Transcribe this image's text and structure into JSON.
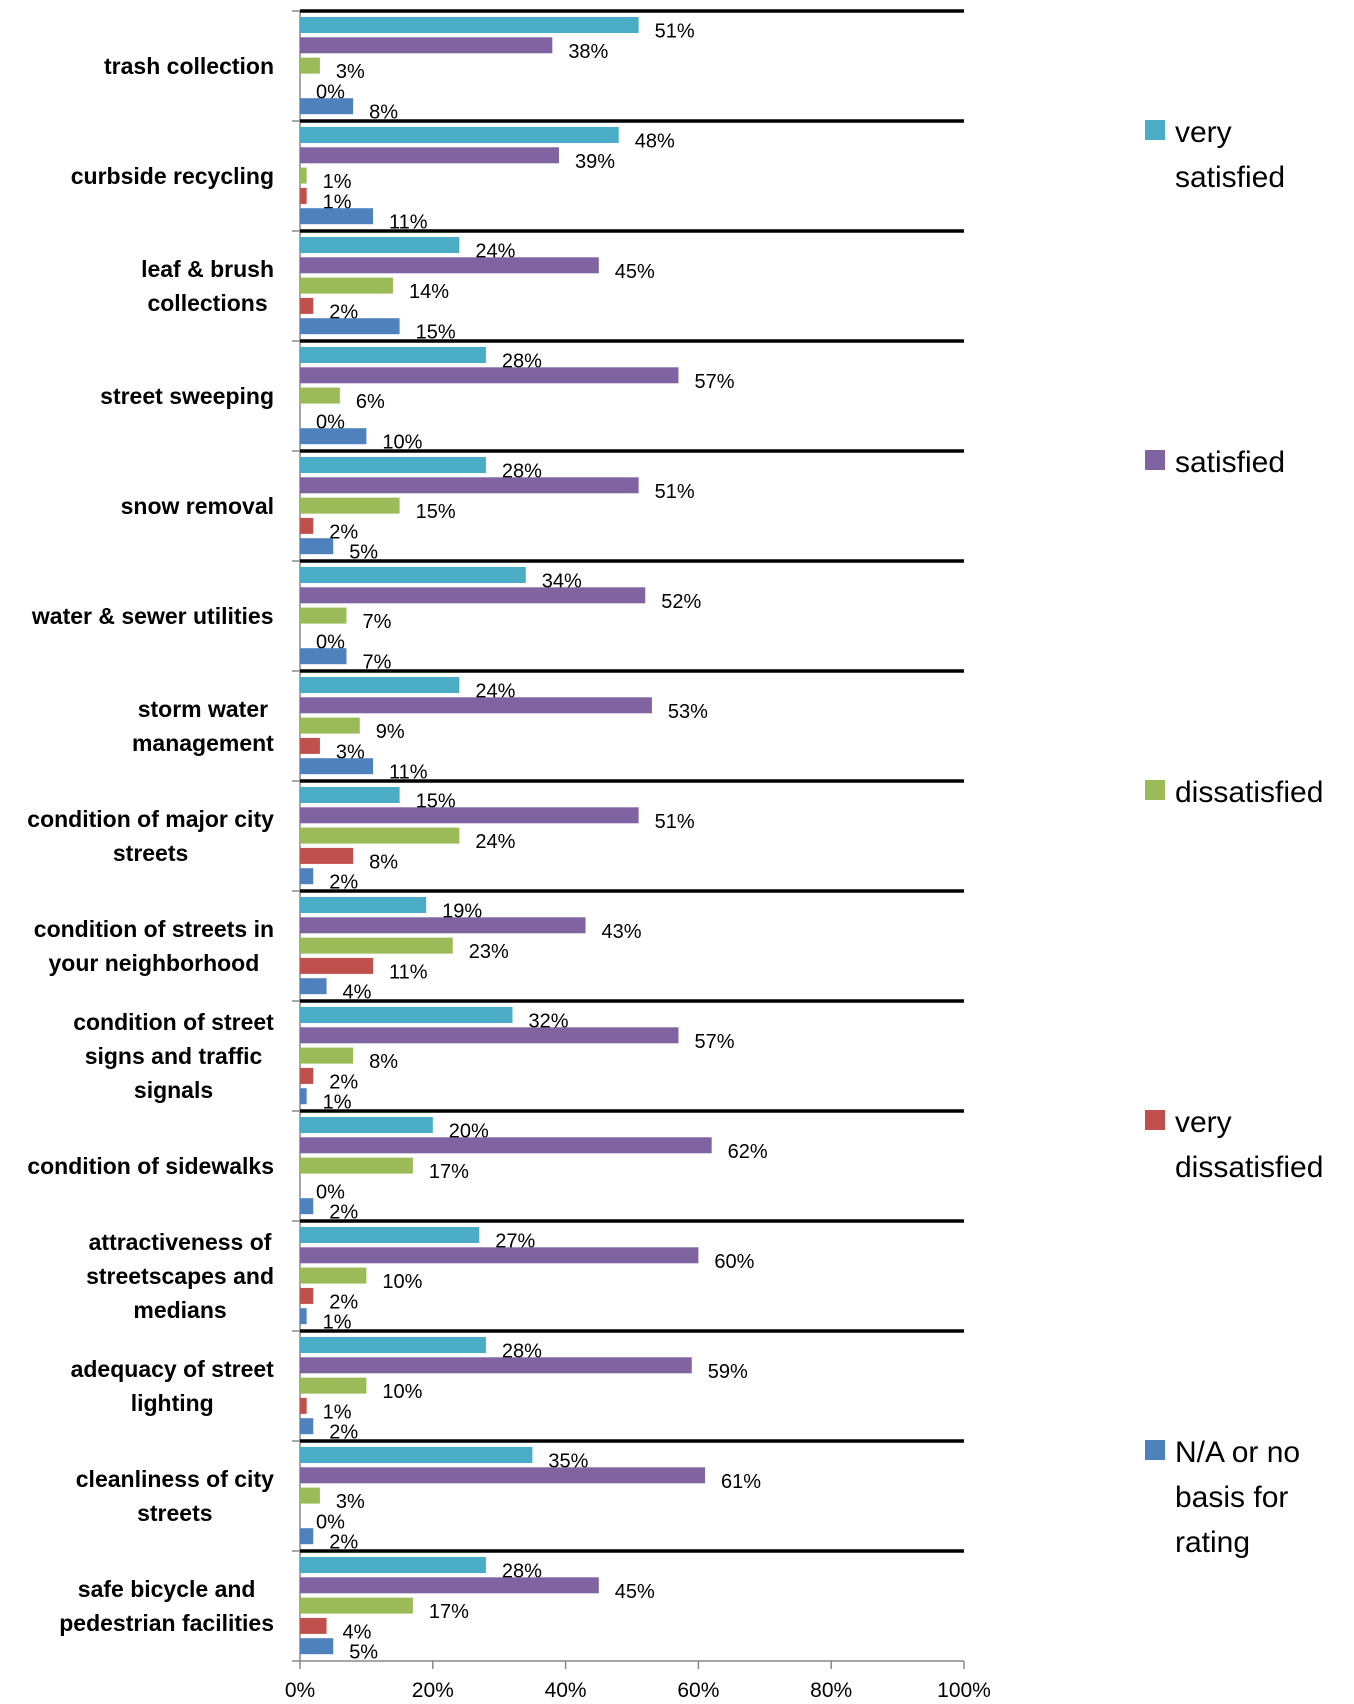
{
  "chart_data": {
    "type": "bar",
    "orientation": "horizontal",
    "categories": [
      "trash collection",
      "curbside recycling",
      "leaf & brush collections",
      "street sweeping",
      "snow removal",
      "water & sewer utilities",
      "storm water management",
      "condition of major city streets",
      "condition of streets in your neighborhood",
      "condition of street signs and traffic signals",
      "condition of sidewalks",
      "attractiveness of streetscapes and medians",
      "adequacy of street lighting",
      "cleanliness of city streets",
      "safe bicycle and pedestrian facilities"
    ],
    "category_lines": [
      [
        "trash collection"
      ],
      [
        "curbside recycling"
      ],
      [
        "leaf & brush",
        "collections"
      ],
      [
        "street sweeping"
      ],
      [
        "snow removal"
      ],
      [
        "water & sewer utilities"
      ],
      [
        "storm water",
        "management"
      ],
      [
        "condition of major city",
        "streets"
      ],
      [
        "condition of streets in",
        "your neighborhood"
      ],
      [
        "condition of street",
        "signs and traffic",
        "signals"
      ],
      [
        "condition of sidewalks"
      ],
      [
        "attractiveness of",
        "streetscapes and",
        "medians"
      ],
      [
        "adequacy of street",
        "lighting"
      ],
      [
        "cleanliness of city",
        "streets"
      ],
      [
        "safe bicycle and",
        "pedestrian facilities"
      ]
    ],
    "series": [
      {
        "name": "very satisfied",
        "legend_lines": [
          "very",
          "satisfied"
        ],
        "color": "#4BACC6",
        "values": [
          51,
          48,
          24,
          28,
          28,
          34,
          24,
          15,
          19,
          32,
          20,
          27,
          28,
          35,
          28
        ]
      },
      {
        "name": "satisfied",
        "legend_lines": [
          "satisfied"
        ],
        "color": "#8064A2",
        "values": [
          38,
          39,
          45,
          57,
          51,
          52,
          53,
          51,
          43,
          57,
          62,
          60,
          59,
          61,
          45
        ]
      },
      {
        "name": "dissatisfied",
        "legend_lines": [
          "dissatisfied"
        ],
        "color": "#9BBB59",
        "values": [
          3,
          1,
          14,
          6,
          15,
          7,
          9,
          24,
          23,
          8,
          17,
          10,
          10,
          3,
          17
        ]
      },
      {
        "name": "very dissatisfied",
        "legend_lines": [
          "very",
          "dissatisfied"
        ],
        "color": "#C0504D",
        "values": [
          0,
          1,
          2,
          0,
          2,
          0,
          3,
          8,
          11,
          2,
          0,
          2,
          1,
          0,
          4
        ]
      },
      {
        "name": "N/A or no basis for rating",
        "legend_lines": [
          "N/A or no",
          "basis for",
          "rating"
        ],
        "color": "#4F81BD",
        "values": [
          8,
          11,
          15,
          10,
          5,
          7,
          11,
          2,
          4,
          1,
          2,
          1,
          2,
          2,
          5
        ]
      }
    ],
    "xlim": [
      0,
      100
    ],
    "x_ticks": [
      "0%",
      "20%",
      "40%",
      "60%",
      "80%",
      "100%"
    ],
    "value_suffix": "%",
    "legend_position": "right",
    "title": "",
    "xlabel": "",
    "ylabel": ""
  }
}
